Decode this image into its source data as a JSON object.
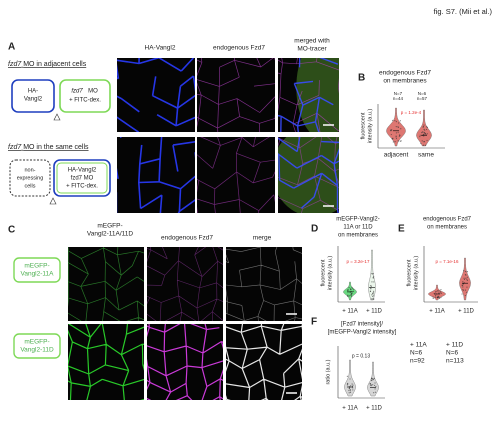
{
  "header": {
    "figure_label": "fig. S7. (Mii et al.)"
  },
  "panel_a": {
    "letter": "A",
    "columns": [
      "HA-Vangl2",
      "endogenous Fzd7"
    ],
    "merged_header": [
      "merged with",
      "MO-tracer"
    ],
    "row1": {
      "gene": "fzd7",
      "title": "MO in adjacent cells",
      "box1": [
        "HA-",
        "Vangl2"
      ],
      "box2_gene": "fzd7",
      "box2": [
        "MO",
        "+ FITC-dex."
      ]
    },
    "row2": {
      "gene": "fzd7",
      "title": "MO in the same cells",
      "box1": [
        "non-",
        "expressing",
        "cells"
      ],
      "box2": [
        "HA-Vangl2",
        "fzd7 MO",
        "+ FITC-dex."
      ]
    }
  },
  "panel_b": {
    "letter": "B",
    "title": [
      "endogenous Fzd7",
      "on membranes"
    ],
    "n_labels": [
      [
        "N=7",
        "n=44"
      ],
      [
        "N=6",
        "n=57"
      ]
    ],
    "p_value": "p = 1.2e-4",
    "y_label": [
      "fluorescent",
      "intensity (a.u.)"
    ],
    "categories": [
      "adjacent",
      "same"
    ]
  },
  "panel_c": {
    "letter": "C",
    "columns": [
      [
        "mEGFP-",
        "Vangl2-11A/11D"
      ],
      [
        "endogenous Fzd7"
      ],
      [
        "merge"
      ]
    ],
    "rows": [
      [
        "mEGFP-",
        "Vangl2-11A"
      ],
      [
        "mEGFP-",
        "Vangl2-11D"
      ]
    ]
  },
  "panel_d": {
    "letter": "D",
    "title": [
      "mEGFP-Vangl2-",
      "11A or 11D",
      "on membranes"
    ],
    "y_label": [
      "fluorescent",
      "intensity (a.u.)"
    ],
    "p_value": "p = 3.2e-17",
    "categories": [
      "+ 11A",
      "+ 11D"
    ]
  },
  "panel_e": {
    "letter": "E",
    "title": [
      "endogenous Fzd7",
      "on membranes"
    ],
    "y_label": [
      "fluorescent",
      "intensity (a.u.)"
    ],
    "p_value": "p = 7.1e-16",
    "categories": [
      "+ 11A",
      "+ 11D"
    ]
  },
  "panel_f": {
    "letter": "F",
    "title": [
      "[Fzd7 intensity]/",
      "[mEGFP-Vangl2 intensity]"
    ],
    "y_label": "ratio (a.u.)",
    "p_value": "p = 0.13",
    "categories": [
      "+ 11A",
      "+ 11D"
    ],
    "counts": [
      [
        "+ 11A",
        "N=6",
        "n=92"
      ],
      [
        "+ 11D",
        "N=6",
        "n=113"
      ]
    ]
  }
}
